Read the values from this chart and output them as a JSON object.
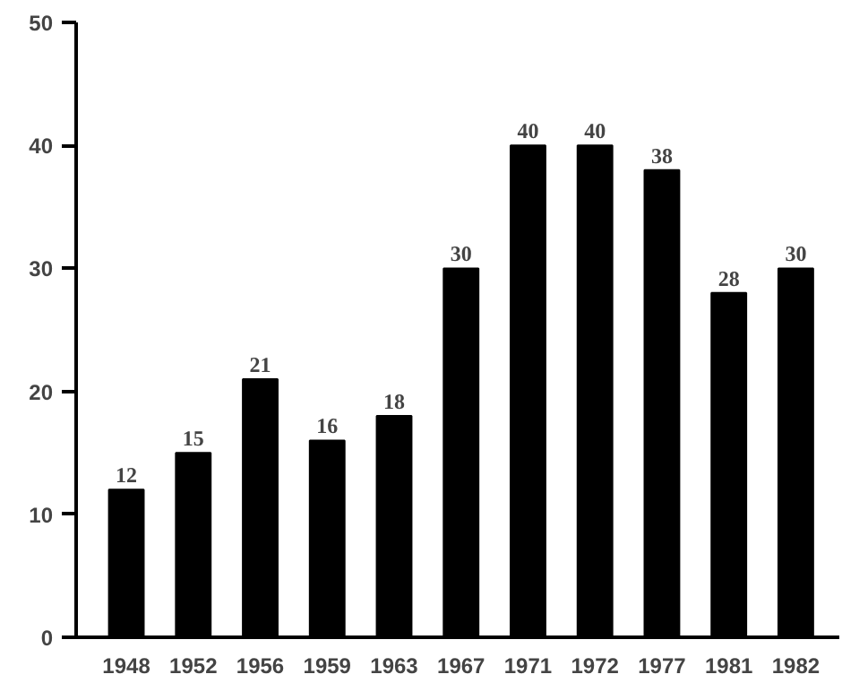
{
  "chart_data": {
    "type": "bar",
    "categories": [
      "1948",
      "1952",
      "1956",
      "1959",
      "1963",
      "1967",
      "1971",
      "1972",
      "1977",
      "1981",
      "1982"
    ],
    "values": [
      12,
      15,
      21,
      16,
      18,
      30,
      40,
      40,
      38,
      28,
      30
    ],
    "color": "#000000",
    "ylim": [
      0,
      50
    ],
    "yticks": [
      0,
      10,
      20,
      30,
      40,
      50
    ],
    "grid": false,
    "data_labels": true
  }
}
